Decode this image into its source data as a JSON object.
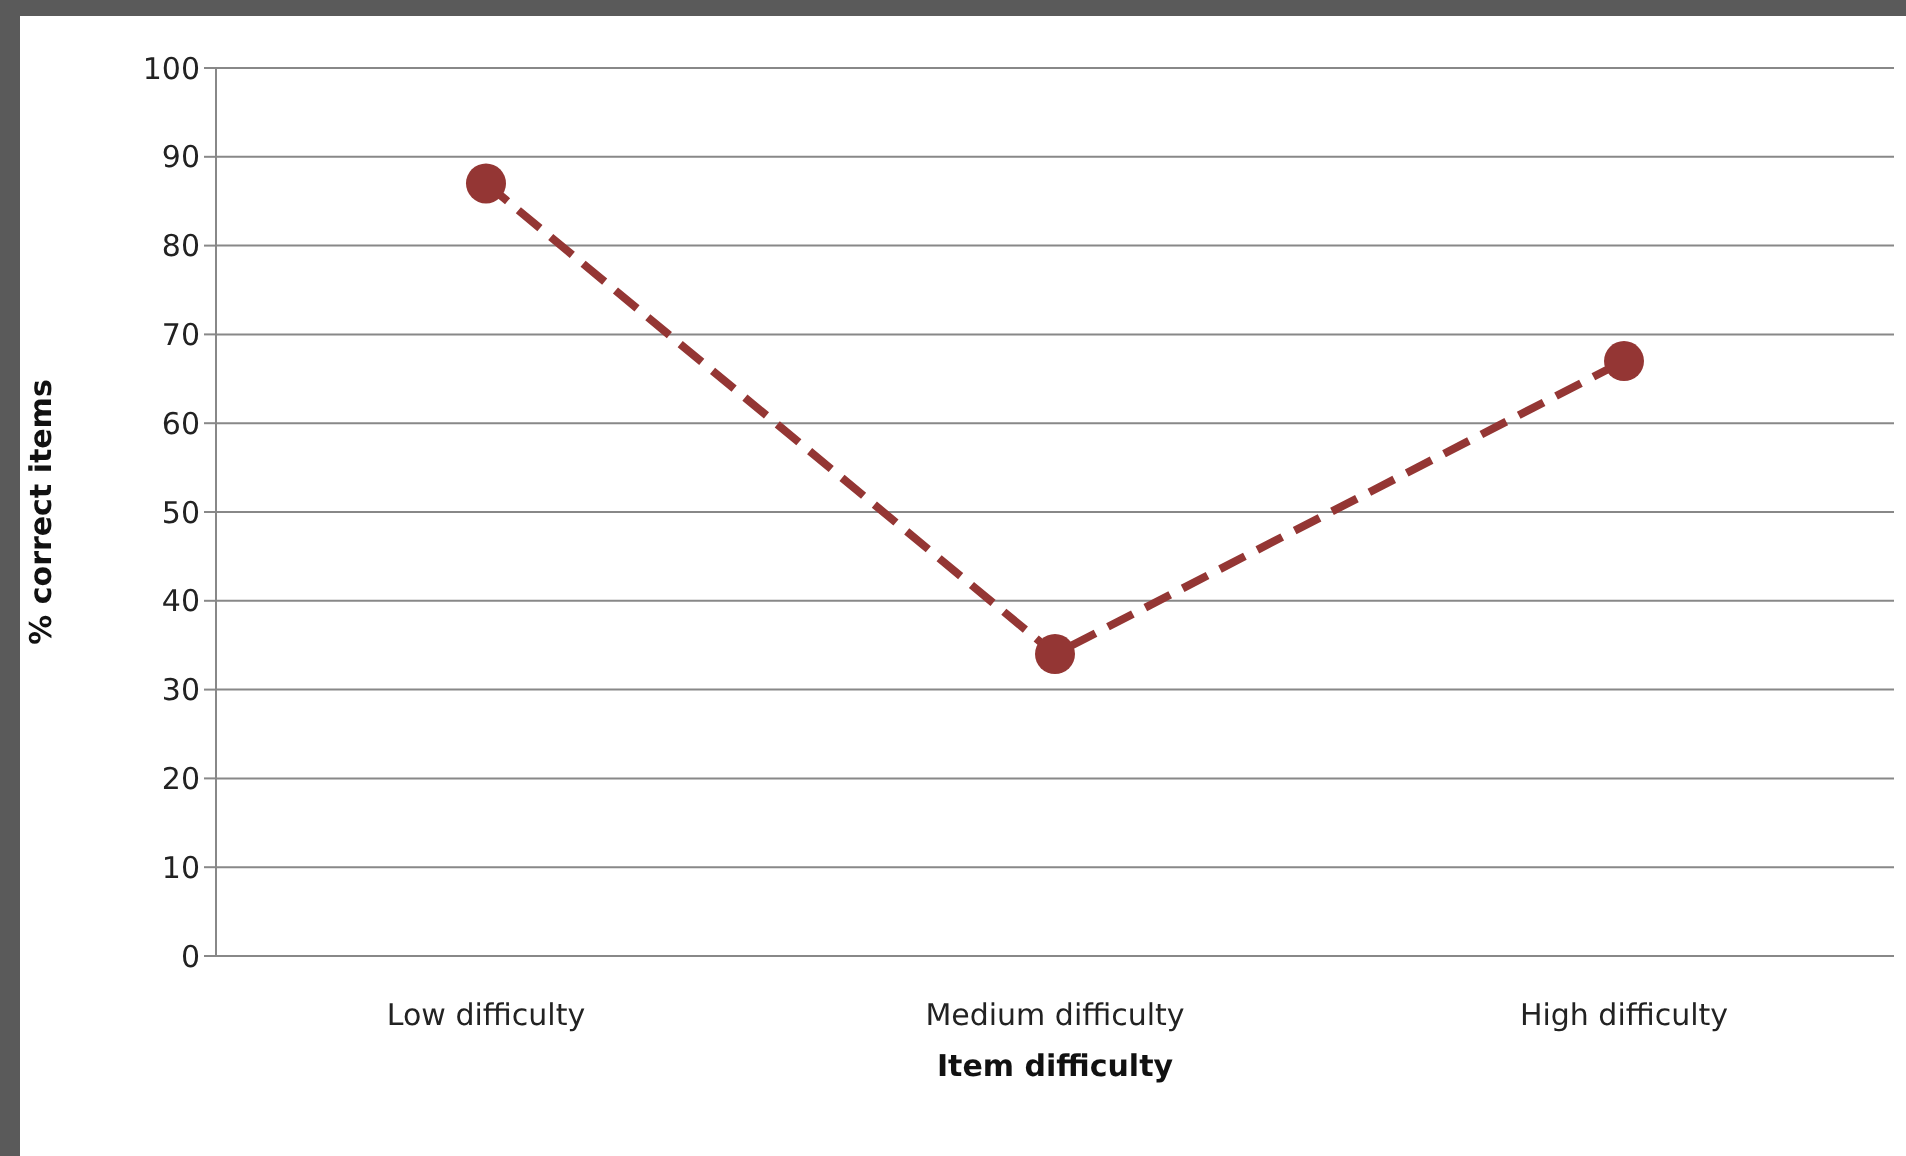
{
  "chart_data": {
    "type": "line",
    "xlabel": "Item difficulty",
    "ylabel": "% correct items",
    "categories": [
      "Low difficulty",
      "Medium difficulty",
      "High difficulty"
    ],
    "values": [
      87,
      34,
      67
    ],
    "color": "#943634",
    "ylim": [
      0,
      100
    ],
    "yticks": [
      0,
      10,
      20,
      30,
      40,
      50,
      60,
      70,
      80,
      90,
      100
    ],
    "grid": "y",
    "marker": "circle",
    "line_style": "dashed"
  }
}
